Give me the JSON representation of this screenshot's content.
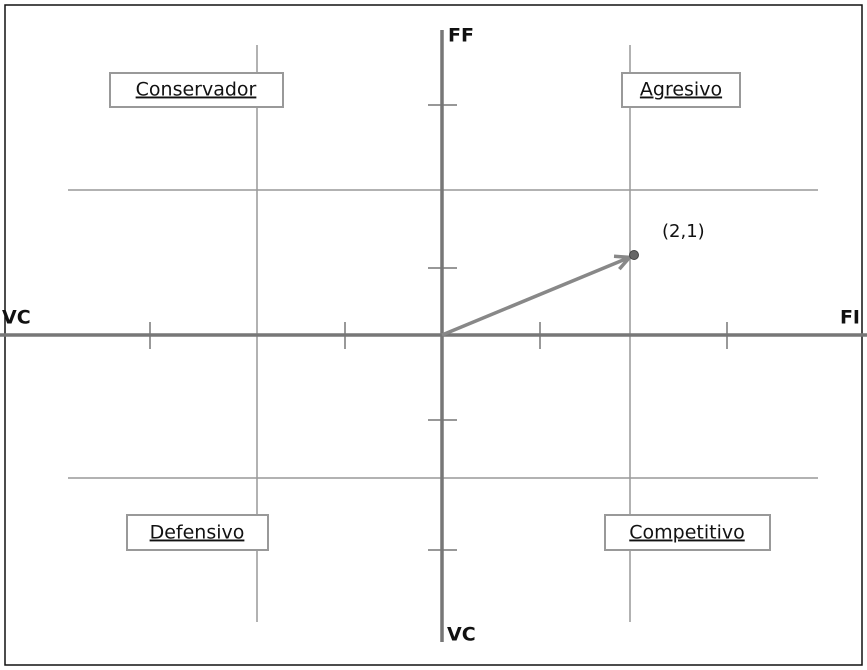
{
  "axes": {
    "top": "FF",
    "left": "VC",
    "right": "FI",
    "bottom": "VC"
  },
  "quadrants": {
    "top_left": "Conservador",
    "top_right": "Agresivo",
    "bottom_left": "Defensivo",
    "bottom_right": "Competitivo"
  },
  "point": {
    "label": "(2,1)"
  }
}
